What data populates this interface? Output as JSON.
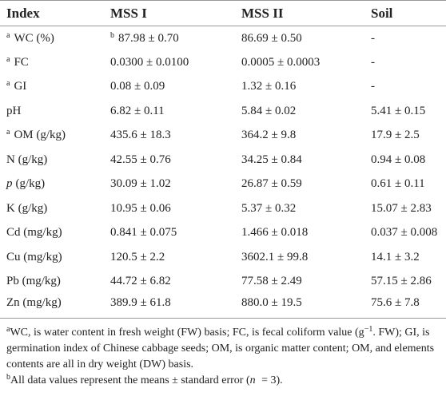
{
  "table": {
    "header": [
      "Index",
      "MSS I",
      "MSS II",
      "Soil"
    ],
    "rows": [
      [
        [
          {
            "sup": "a"
          },
          {
            "text": "WC (%)"
          }
        ],
        [
          {
            "sup": "b"
          },
          {
            "text": "87.98 ± 0.70"
          }
        ],
        "86.69 ± 0.50",
        "-"
      ],
      [
        [
          {
            "sup": "a"
          },
          {
            "text": "FC"
          }
        ],
        "0.0300 ± 0.0100",
        "0.0005 ± 0.0003",
        "-"
      ],
      [
        [
          {
            "sup": "a"
          },
          {
            "text": "GI"
          }
        ],
        "0.08 ± 0.09",
        "1.32 ± 0.16",
        "-"
      ],
      [
        "pH",
        "6.82 ± 0.11",
        "5.84 ± 0.02",
        "5.41 ± 0.15"
      ],
      [
        [
          {
            "sup": "a"
          },
          {
            "text": "OM (g/kg)"
          }
        ],
        "435.6 ± 18.3",
        "364.2 ± 9.8",
        "17.9 ± 2.5"
      ],
      [
        "N (g/kg)",
        "42.55 ± 0.76",
        "34.25 ± 0.84",
        "0.94 ± 0.08"
      ],
      [
        [
          {
            "italic": "p"
          },
          {
            "text": "(g/kg)"
          }
        ],
        "30.09 ± 1.02",
        "26.87 ± 0.59",
        "0.61 ± 0.11"
      ],
      [
        "K (g/kg)",
        "10.95 ± 0.06",
        "5.37 ± 0.32",
        "15.07 ± 2.83"
      ],
      [
        "Cd (mg/kg)",
        "0.841 ± 0.075",
        "1.466 ± 0.018",
        "0.037 ± 0.008"
      ],
      [
        "Cu (mg/kg)",
        "120.5 ± 2.2",
        "3602.1 ± 99.8",
        "14.1 ± 3.2"
      ],
      [
        "Pb (mg/kg)",
        "44.72 ± 6.82",
        "77.58 ± 2.49",
        "57.15 ± 2.86"
      ],
      [
        "Zn (mg/kg)",
        "389.9 ± 61.8",
        "880.0 ± 19.5",
        "75.6 ± 7.8"
      ]
    ]
  },
  "footnotes": [
    [
      {
        "sup": "a"
      },
      {
        "text": "WC, is water content in fresh weight (FW) basis; FC, is fecal coliform value (g"
      },
      {
        "sup": "−1"
      },
      {
        "text": ". FW); GI, is germination index of Chinese cabbage seeds; OM, is organic matter content; OM, and elements contents are all in dry weight (DW) basis."
      }
    ],
    [
      {
        "sup": "b"
      },
      {
        "text": "All data values represent the means ± standard error ("
      },
      {
        "italic": "n"
      },
      {
        "text": " = 3)."
      }
    ]
  ]
}
